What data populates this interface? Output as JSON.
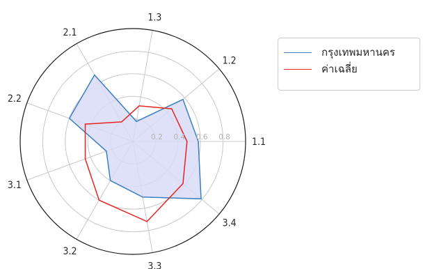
{
  "chart_data": {
    "type": "radar",
    "categories": [
      "1.1",
      "1.2",
      "1.3",
      "2.1",
      "2.2",
      "3.1",
      "3.2",
      "3.3",
      "3.4"
    ],
    "radial_ticks": [
      "0.2",
      "0.4",
      "0.6",
      "0.8"
    ],
    "rlim": [
      0,
      1
    ],
    "grid": true,
    "legend_position": "top-right",
    "series": [
      {
        "name": "กรุงเทพมหานคร",
        "color": "#3a7fc1",
        "fill": "#d9dcf7",
        "values": [
          0.58,
          0.58,
          0.18,
          0.68,
          0.6,
          0.25,
          0.4,
          0.5,
          0.79
        ]
      },
      {
        "name": "ค่าเฉลี่ย",
        "color": "#e8231f",
        "values": [
          0.48,
          0.45,
          0.32,
          0.2,
          0.45,
          0.45,
          0.6,
          0.72,
          0.58
        ]
      }
    ]
  }
}
